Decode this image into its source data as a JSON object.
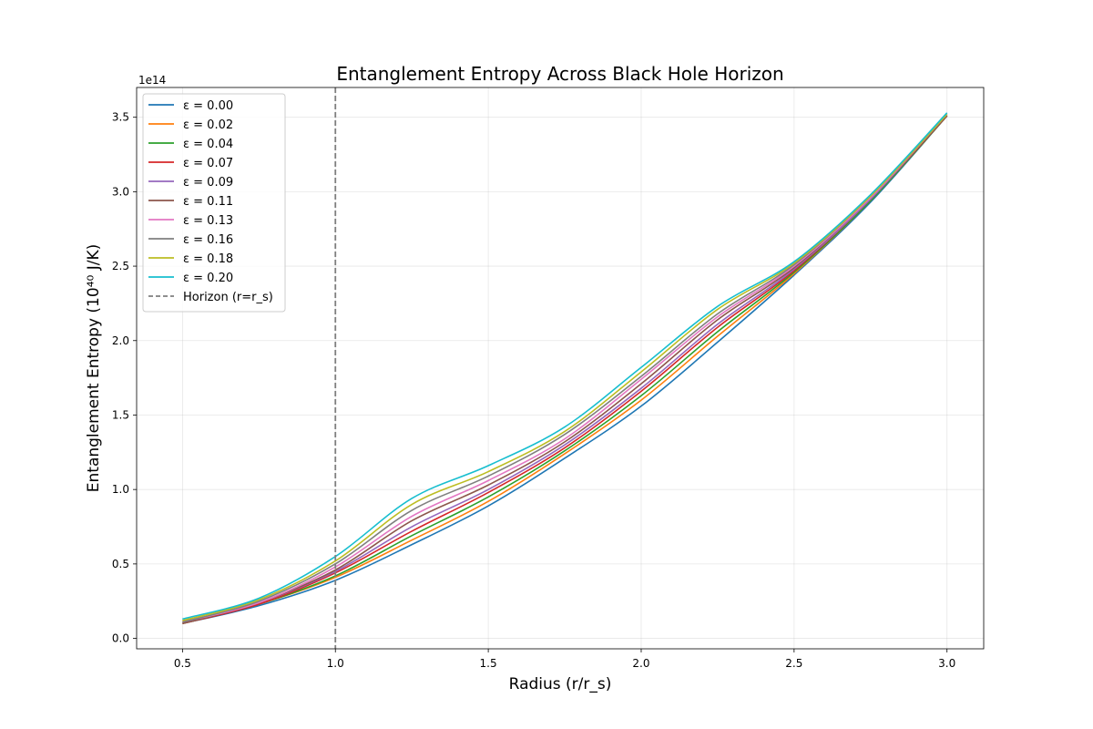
{
  "chart_data": {
    "type": "line",
    "title": "Entanglement Entropy Across Black Hole Horizon",
    "xlabel": "Radius (r/r_s)",
    "ylabel": "Entanglement Entropy (10⁴⁰ J/K)",
    "y_offset_label": "1e14",
    "xlim": [
      0.35,
      3.12
    ],
    "ylim": [
      -0.07,
      3.7
    ],
    "y_scale_note": "tick values shown in units of 1e14",
    "x_ticks": [
      0.5,
      1.0,
      1.5,
      2.0,
      2.5,
      3.0
    ],
    "x_tick_labels": [
      "0.5",
      "1.0",
      "1.5",
      "2.0",
      "2.5",
      "3.0"
    ],
    "y_ticks": [
      0.0,
      0.5,
      1.0,
      1.5,
      2.0,
      2.5,
      3.0,
      3.5
    ],
    "y_tick_labels": [
      "0.0",
      "0.5",
      "1.0",
      "1.5",
      "2.0",
      "2.5",
      "3.0",
      "3.5"
    ],
    "grid": true,
    "legend_position": "upper-left",
    "x": [
      0.5,
      0.75,
      1.0,
      1.25,
      1.5,
      1.75,
      2.0,
      2.25,
      2.5,
      2.75,
      3.0
    ],
    "series": [
      {
        "name": "ε = 0.00",
        "color": "#1f77b4",
        "values": [
          0.1,
          0.22,
          0.39,
          0.63,
          0.89,
          1.21,
          1.56,
          1.99,
          2.44,
          2.93,
          3.51
        ]
      },
      {
        "name": "ε = 0.02",
        "color": "#ff7f0e",
        "values": [
          0.1,
          0.23,
          0.41,
          0.66,
          0.92,
          1.24,
          1.6,
          2.03,
          2.45,
          2.94,
          3.51
        ]
      },
      {
        "name": "ε = 0.04",
        "color": "#2ca02c",
        "values": [
          0.1,
          0.23,
          0.42,
          0.69,
          0.95,
          1.26,
          1.63,
          2.06,
          2.46,
          2.94,
          3.51
        ]
      },
      {
        "name": "ε = 0.07",
        "color": "#d62728",
        "values": [
          0.1,
          0.23,
          0.44,
          0.72,
          0.98,
          1.28,
          1.66,
          2.09,
          2.47,
          2.95,
          3.51
        ]
      },
      {
        "name": "ε = 0.09",
        "color": "#9467bd",
        "values": [
          0.11,
          0.24,
          0.45,
          0.75,
          1.0,
          1.3,
          1.68,
          2.11,
          2.48,
          2.95,
          3.52
        ]
      },
      {
        "name": "ε = 0.11",
        "color": "#8c564b",
        "values": [
          0.1,
          0.24,
          0.46,
          0.79,
          1.03,
          1.32,
          1.71,
          2.14,
          2.49,
          2.96,
          3.51
        ]
      },
      {
        "name": "ε = 0.13",
        "color": "#e377c2",
        "values": [
          0.11,
          0.24,
          0.48,
          0.82,
          1.06,
          1.34,
          1.74,
          2.16,
          2.5,
          2.96,
          3.52
        ]
      },
      {
        "name": "ε = 0.16",
        "color": "#7f7f7f",
        "values": [
          0.11,
          0.25,
          0.5,
          0.86,
          1.09,
          1.37,
          1.76,
          2.18,
          2.51,
          2.97,
          3.52
        ]
      },
      {
        "name": "ε = 0.18",
        "color": "#bcbd22",
        "values": [
          0.12,
          0.26,
          0.52,
          0.9,
          1.12,
          1.39,
          1.79,
          2.21,
          2.52,
          2.97,
          3.52
        ]
      },
      {
        "name": "ε = 0.20",
        "color": "#17becf",
        "values": [
          0.13,
          0.27,
          0.55,
          0.94,
          1.16,
          1.42,
          1.82,
          2.23,
          2.53,
          2.98,
          3.53
        ]
      }
    ],
    "horizon": {
      "name": "Horizon (r=r_s)",
      "x": 1.0,
      "color": "#7f7f7f",
      "style": "dashed"
    }
  }
}
